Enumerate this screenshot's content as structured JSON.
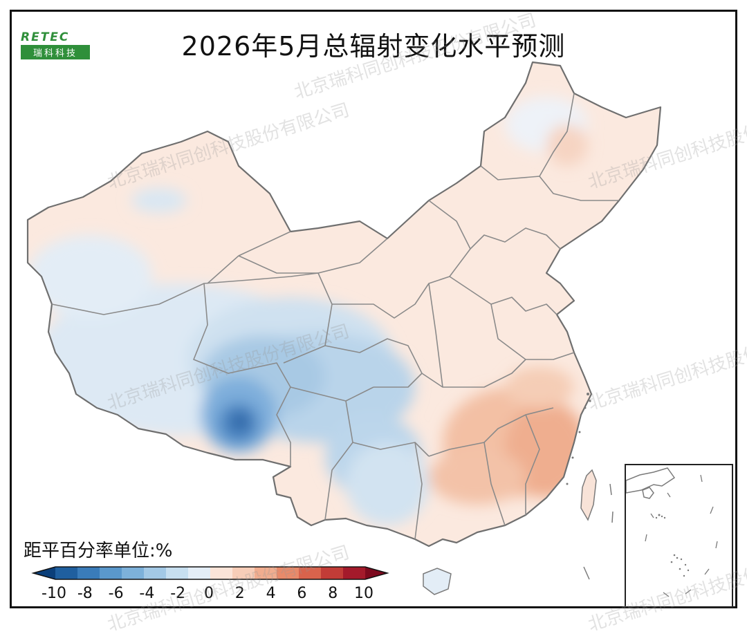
{
  "title": "2026年5月总辐射变化水平预测",
  "logo": {
    "top": "RETEC",
    "bottom": "瑞科科技"
  },
  "legend": {
    "title": "距平百分率单位:%",
    "ticks": [
      "-10",
      "-8",
      "-6",
      "-4",
      "-2",
      "0",
      "2",
      "4",
      "6",
      "8",
      "10"
    ],
    "colors": [
      "#0b3f7a",
      "#1f5f9f",
      "#3a7cba",
      "#5a98cc",
      "#7db1da",
      "#a3c9e6",
      "#c7dff0",
      "#e4eef7",
      "#fbe4d8",
      "#f7cdb8",
      "#f1ad8f",
      "#e88a6a",
      "#d9634c",
      "#c23c37",
      "#a41a2b",
      "#7d0a1e"
    ]
  },
  "watermark": "北京瑞科同创科技股份有限公司",
  "colors": {
    "frame": "#111111",
    "boundary": "#7a7a7a",
    "logo_green": "#2f8f3a"
  }
}
